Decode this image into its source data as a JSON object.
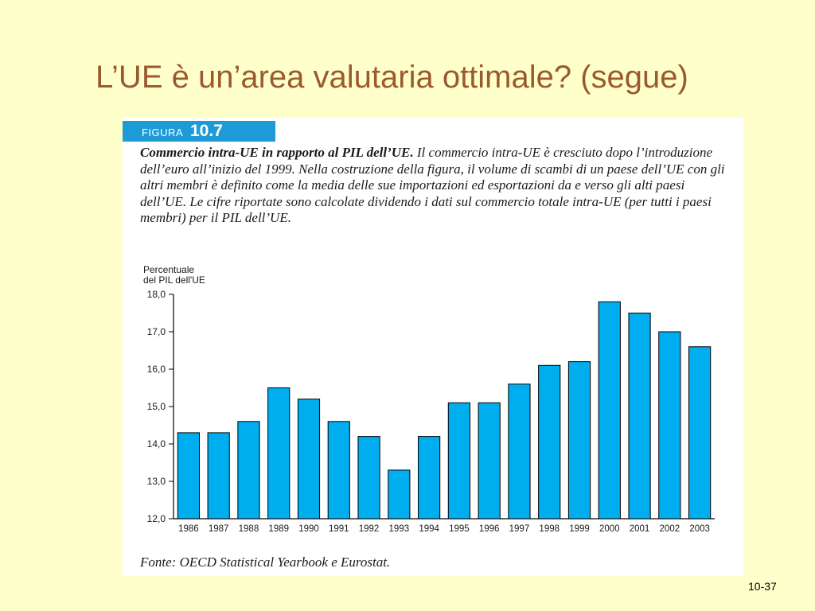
{
  "slide": {
    "title": "L’UE è un’area valutaria ottimale? (segue)",
    "page_number": "10-37"
  },
  "figure": {
    "label": "FIGURA",
    "number": "10.7",
    "caption_title": "Commercio intra-UE in rapporto al PIL dell’UE.",
    "caption_body": "Il commercio intra-UE è cresciuto dopo l’introduzione dell’euro all’inizio del 1999. Nella costruzione della figura, il volume di scambi di un paese dell’UE con gli altri membri è definito come la media delle sue importazioni ed esportazioni da e verso gli alti paesi dell’UE. Le cifre riportate sono calcolate dividendo i dati sul commercio totale intra-UE (per tutti i paesi membri) per il PIL dell’UE.",
    "source": "Fonte: OECD Statistical Yearbook e Eurostat.",
    "header_color": "#1E9BD7"
  },
  "chart_data": {
    "type": "bar",
    "ylabel_line1": "Percentuale",
    "ylabel_line2": "del PIL dell'UE",
    "categories": [
      "1986",
      "1987",
      "1988",
      "1989",
      "1990",
      "1991",
      "1992",
      "1993",
      "1994",
      "1995",
      "1996",
      "1997",
      "1998",
      "1999",
      "2000",
      "2001",
      "2002",
      "2003"
    ],
    "values": [
      14.3,
      14.3,
      14.6,
      15.5,
      15.2,
      14.6,
      14.2,
      13.3,
      14.2,
      15.1,
      15.1,
      15.6,
      16.1,
      16.2,
      17.8,
      17.5,
      17.0,
      16.6
    ],
    "ylim": [
      12.0,
      18.0
    ],
    "yticks": [
      12,
      13,
      14,
      15,
      16,
      17,
      18
    ],
    "ytick_labels": [
      "12,0",
      "13,0",
      "14,0",
      "15,0",
      "16,0",
      "17,0",
      "18,0"
    ],
    "bar_color": "#00AEEF",
    "grid": false
  }
}
